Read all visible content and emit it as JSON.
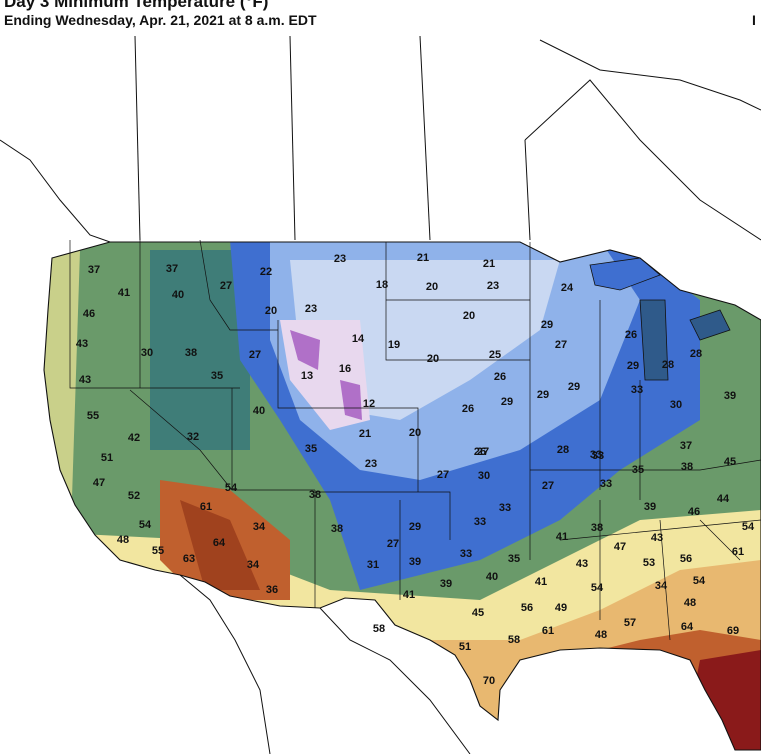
{
  "header": {
    "title": "Day 3 Minimum Temperature (°F)",
    "subtitle": "Ending Wednesday, Apr. 21, 2021 at 8 a.m. EDT",
    "corner_mark": "I"
  },
  "colors": {
    "very_cold": "#e8d8ee",
    "cold": "#c9d8f2",
    "cool": "#8fb2ea",
    "chilly": "#3f6fd0",
    "mild_low": "#3f7d78",
    "mild": "#6a9a6a",
    "warm_low": "#c9d08a",
    "warm": "#f2e6a0",
    "hot_low": "#e8b870",
    "hot": "#c0602e",
    "very_hot": "#8a1a1a",
    "purple": "#b070c8",
    "ocean": "#ffffff",
    "outline": "#111111"
  },
  "temperatures": [
    "37",
    "37",
    "41",
    "40",
    "27",
    "22",
    "23",
    "21",
    "21",
    "18",
    "20",
    "23",
    "24",
    "46",
    "20",
    "23",
    "14",
    "19",
    "20",
    "29",
    "27",
    "26",
    "28",
    "43",
    "30",
    "38",
    "27",
    "13",
    "16",
    "20",
    "25",
    "26",
    "29",
    "29",
    "28",
    "43",
    "35",
    "12",
    "26",
    "29",
    "29",
    "33",
    "30",
    "39",
    "55",
    "40",
    "42",
    "32",
    "21",
    "20",
    "26",
    "33",
    "37",
    "51",
    "35",
    "23",
    "27",
    "27",
    "28",
    "33",
    "35",
    "38",
    "45",
    "47",
    "54",
    "30",
    "27",
    "33",
    "44",
    "52",
    "61",
    "38",
    "33",
    "39",
    "46",
    "54",
    "34",
    "29",
    "33",
    "38",
    "43",
    "54",
    "48",
    "55",
    "64",
    "38",
    "27",
    "33",
    "35",
    "41",
    "47",
    "53",
    "56",
    "61",
    "63",
    "34",
    "31",
    "39",
    "40",
    "41",
    "43",
    "54",
    "54",
    "34",
    "36",
    "39",
    "41",
    "45",
    "56",
    "49",
    "48",
    "58",
    "51",
    "58",
    "61",
    "48",
    "57",
    "64",
    "69",
    "70"
  ]
}
